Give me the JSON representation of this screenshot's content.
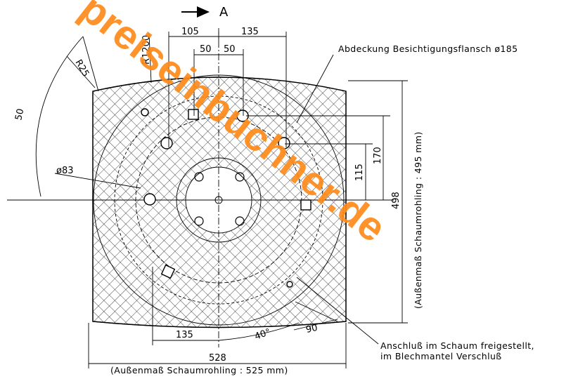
{
  "view_marker": "A",
  "dimensions": {
    "top_left": "105",
    "top_right": "135",
    "inner_left": "50",
    "inner_right": "50",
    "radius_1200": "R1200",
    "radius_25": "R25",
    "arc_50": "50",
    "diameter_83": "ø83",
    "height_115": "115",
    "height_170": "170",
    "height_498": "498",
    "bottom_135": "135",
    "angle_40": "40°",
    "bottom_90": "90",
    "width_528": "528"
  },
  "notes": {
    "cover_flange": "Abdeckung Besichtigungsflansch ø185",
    "foam_height": "(Außenmaß Schaumrohling : 495 mm)",
    "foam_width": "(Außenmaß Schaumrohling : 525 mm)",
    "connection_line1": "Anschluß im Schaum freigestellt,",
    "connection_line2": "im Blechmantel Verschluß"
  },
  "watermark": "preiseinbuchner.de",
  "colors": {
    "line": "#000000",
    "watermark": "#ff8a1a",
    "background": "#ffffff"
  }
}
